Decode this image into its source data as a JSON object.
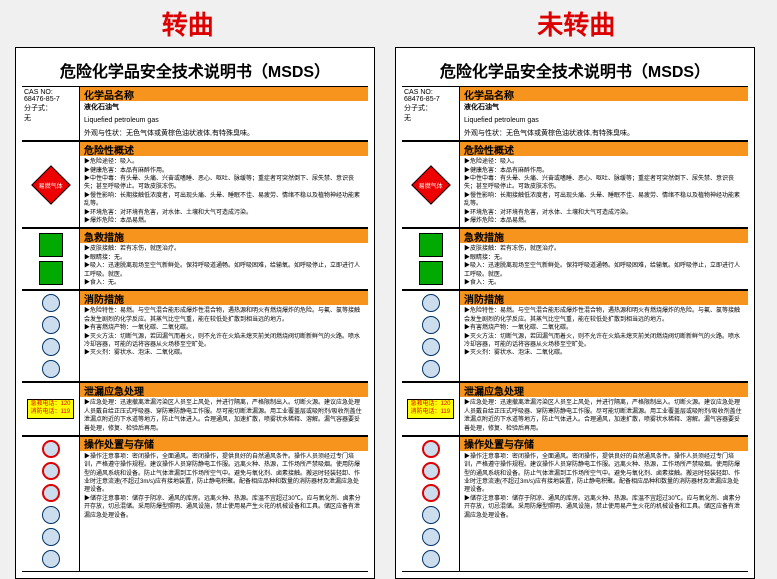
{
  "labels": {
    "left": "转曲",
    "right": "未转曲"
  },
  "sheet": {
    "title": "危险化学品安全技术说明书（MSDS）",
    "cas_label": "CAS NO:",
    "cas": "68476-85-7",
    "formula_label": "分子式：",
    "formula": "无",
    "s1": {
      "h": "化学品名称",
      "name": "液化石油气",
      "en": "Liquefied petroleum gas",
      "app": "外观与性状：无色气体或黄棕色油状液体,有特殊臭味。"
    },
    "s2": {
      "h": "危险性概述",
      "t": "▶危险途径：吸入。\n▶健康危害：本品有麻醉作用。\n▶中性中毒：有头晕、头痛、兴奋或嗜睡、恶心、呕吐、脉缓等；重症者可突然倒下、尿失禁、意识丧失；甚至呼吸停止。可致皮肤冻伤。\n▶慢性影响：长期接触低浓度者，可出现头痛、头晕、睡眠不佳、易疲劳、情绪不稳以及植物神经功能紊乱等。\n▶环境危害：对环境有危害，对水体、土壤和大气可造成污染。\n▶爆炸危险：本品易燃。"
    },
    "s3": {
      "h": "急救措施",
      "t": "▶皮肤接触：若有冻伤，就医治疗。\n▶眼睛接：无。\n▶吸入：迅速脱离现场至空气新鲜处。保持呼吸道通畅。如呼吸困难，给输氧。如呼吸停止，立即进行人工呼吸。就医。\n▶食入：无。"
    },
    "s4": {
      "h": "消防措施",
      "t": "▶危险特性：易燃。与空气混合能形成爆炸性混合物，遇热源和明火有燃烧爆炸的危险。与氟、氯等接触会发生剧烈的化学反应。其蒸气比空气重，能在较低处扩散到相当远的地方。\n▶有害燃烧产物：一氧化碳、二氧化碳。\n▶灭火方法：切断气源，若因漏气而着火，则不允许在火焰未熄灭前关闭燃烧阀切断新鲜气的火路。喷水冷却容器，可能的话将容器从火场移至空旷处。\n▶灭火剂：雾状水、泡沫、二氧化碳。"
    },
    "s5": {
      "h": "泄漏应急处理",
      "t": "▶应急处理：迅速撤离泄漏污染区人员至上风处，并进行隔离，严格限制出入。切断火源。建议应急处理人员戴自给正压式呼吸器、穿防寒防静电工作服。尽可能切断泄漏源。用工业覆盖层或吸附剂/吸收剂盖住泄漏点附近的下水道等地方，防止气体进入。合理通风，加速扩散，喷雾状水稀释、溶解。漏气容器要妥善处理，修复、检验后再用。"
    },
    "s6": {
      "h": "操作处置与存储",
      "t": "▶操作注意事项：密闭操作，全面通风。密闭操作，提供良好的自然通风条件。操作人员须经过专门培训，严格遵守操作规程。建议操作人员穿防静电工作服。远离火种、热源，工作场所严禁吸烟。使用防爆型的通风系统和设备。防止气体泄漏到工作场所空气中。避免与氧化剂、卤素接触。搬运时轻装轻卸、作业时注意流速(不超过3m/s)应有接地装置，防止静电积聚。配备相应品种和数量的消防器材及泄漏应急处理设备。\n▶储存注意事项：储存于阴凉、通风的库房。远离火种、热源。库温不宜超过30℃。应与氧化剂、卤素分开存放，切忌混储。采用防爆型照明、通风设施，禁止使用易产生火花的机械设备和工具。储区应备有泄漏应急处理设备。"
    },
    "emerg1": "急救电话：120",
    "emerg2": "消防电话：119"
  }
}
